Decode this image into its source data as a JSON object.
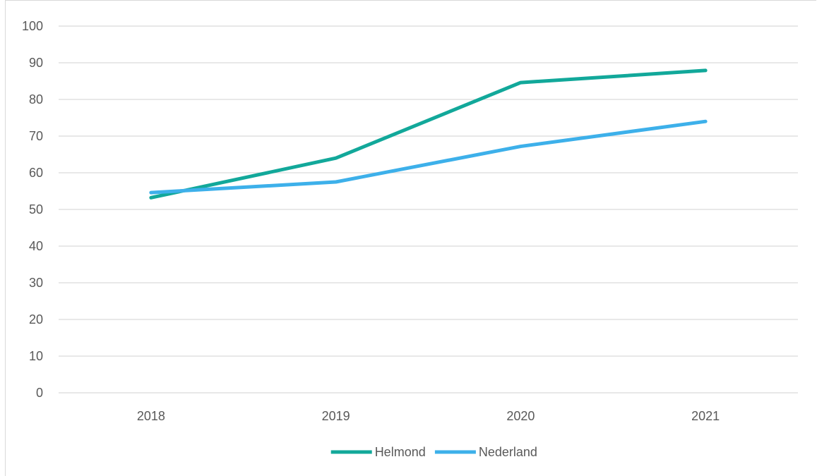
{
  "chart_data": {
    "type": "line",
    "title": "",
    "xlabel": "",
    "ylabel": "",
    "categories": [
      "2018",
      "2019",
      "2020",
      "2021"
    ],
    "ylim": [
      0,
      100
    ],
    "yticks": [
      0,
      10,
      20,
      30,
      40,
      50,
      60,
      70,
      80,
      90,
      100
    ],
    "grid": true,
    "legend": "bottom",
    "series": [
      {
        "name": "Helmond",
        "values": [
          53.2,
          64.0,
          84.6,
          87.9
        ],
        "color": "#12a89a"
      },
      {
        "name": "Nederland",
        "values": [
          54.6,
          57.5,
          67.2,
          74.0
        ],
        "color": "#3db0ea"
      }
    ]
  }
}
